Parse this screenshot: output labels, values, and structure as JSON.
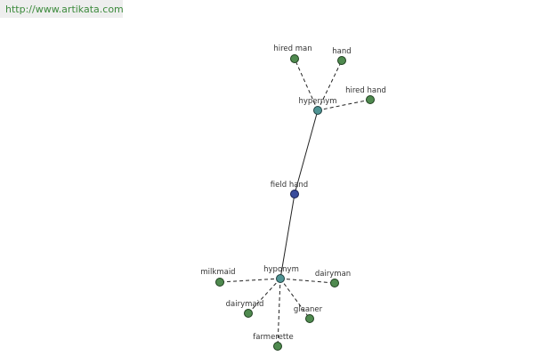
{
  "header": {
    "url": "http://www.artikata.com"
  },
  "nodes": [
    {
      "label": "hired man"
    },
    {
      "label": "hand"
    },
    {
      "label": "hired hand"
    },
    {
      "label": "hypernym"
    },
    {
      "label": "field hand"
    },
    {
      "label": "hyponym"
    },
    {
      "label": "milkmaid"
    },
    {
      "label": "dairyman"
    },
    {
      "label": "dairymaid"
    },
    {
      "label": "gleaner"
    },
    {
      "label": "farmerette"
    }
  ]
}
